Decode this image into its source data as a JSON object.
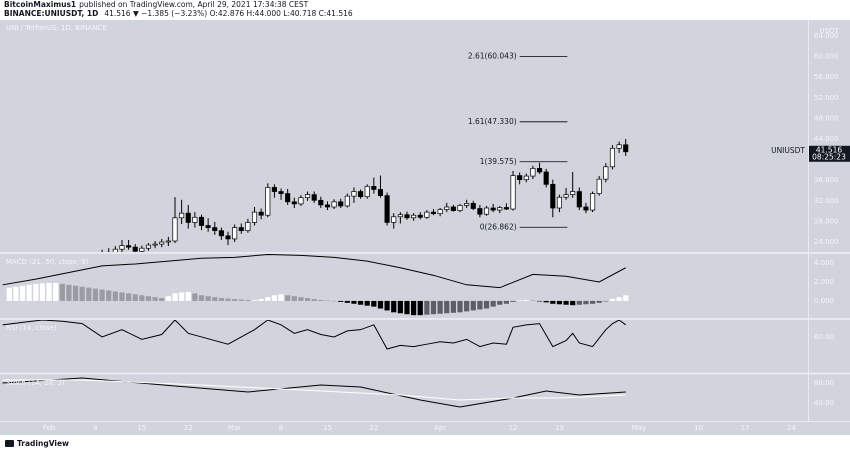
{
  "header": {
    "author": "BitcoinMaximus1",
    "published": "published on TradingView.com, April 29, 2021 17:34:38 CEST",
    "symbol": "BINANCE:UNIUSDT, 1D",
    "quote": "41.516 ▼ −1.385 (−3.23%) O:42.876 H:44.000 L:40.718 C:41.516"
  },
  "footer": {
    "brand": "TradingView"
  },
  "chart_data": [
    {
      "type": "candlestick",
      "legend": "UNI / TetherUS, 1D, BINANCE",
      "currency": "USDT",
      "up_color": "#ffffff",
      "down_color": "#000000",
      "border_color": "#000000",
      "xlim": [
        -7.4,
        114.5
      ],
      "xticks": [
        {
          "value": 0,
          "label": "Feb"
        },
        {
          "value": 7,
          "label": "8"
        },
        {
          "value": 14,
          "label": "15"
        },
        {
          "value": 21,
          "label": "22"
        },
        {
          "value": 28,
          "label": "Mar"
        },
        {
          "value": 35,
          "label": "8"
        },
        {
          "value": 42,
          "label": "15"
        },
        {
          "value": 49,
          "label": "22"
        },
        {
          "value": 59,
          "label": "Apr"
        },
        {
          "value": 70,
          "label": "12"
        },
        {
          "value": 77,
          "label": "19"
        },
        {
          "value": 89,
          "label": "May"
        },
        {
          "value": 98,
          "label": "10"
        },
        {
          "value": 105,
          "label": "17"
        },
        {
          "value": 112,
          "label": "24"
        }
      ],
      "ylim": [
        22.06,
        67.1
      ],
      "yticks": [
        {
          "value": 24,
          "label": "24.000"
        },
        {
          "value": 28,
          "label": "28.000"
        },
        {
          "value": 32,
          "label": "32.000"
        },
        {
          "value": 36,
          "label": "36.000"
        },
        {
          "value": 40,
          "label": "40.000"
        },
        {
          "value": 44,
          "label": "44.000"
        },
        {
          "value": 48,
          "label": "48.000"
        },
        {
          "value": 52,
          "label": "52.000"
        },
        {
          "value": 56,
          "label": "56.000"
        },
        {
          "value": 60,
          "label": "60.000"
        },
        {
          "value": 64,
          "label": "64.000"
        }
      ],
      "x": [
        8,
        9,
        10,
        11,
        12,
        13,
        14,
        15,
        16,
        17,
        18,
        19,
        20,
        21,
        22,
        23,
        24,
        25,
        26,
        27,
        28,
        29,
        30,
        31,
        32,
        33,
        34,
        35,
        36,
        37,
        38,
        39,
        40,
        41,
        42,
        43,
        44,
        45,
        46,
        47,
        48,
        49,
        50,
        51,
        52,
        53,
        54,
        55,
        56,
        57,
        58,
        59,
        60,
        61,
        62,
        63,
        64,
        65,
        66,
        67,
        68,
        69,
        70,
        71,
        72,
        73,
        74,
        75,
        76,
        77,
        78,
        79,
        80,
        81,
        82,
        83,
        84,
        85,
        86,
        87
      ],
      "ohlc": [
        [
          21,
          22.5,
          20,
          21.5
        ],
        [
          21.5,
          22.8,
          21,
          22
        ],
        [
          22,
          23.2,
          21.5,
          22.6
        ],
        [
          22.6,
          24.4,
          22,
          23.3
        ],
        [
          23.3,
          24.4,
          22.5,
          23
        ],
        [
          23,
          23.6,
          21.8,
          22.2
        ],
        [
          22.2,
          23.3,
          21.5,
          22.8
        ],
        [
          22.8,
          23.8,
          22.3,
          23.4
        ],
        [
          23.4,
          24.2,
          22.8,
          23.6
        ],
        [
          23.6,
          24.6,
          23,
          24
        ],
        [
          24,
          25,
          23.2,
          24.2
        ],
        [
          24.2,
          32.7,
          23.8,
          28.7
        ],
        [
          28.7,
          32.2,
          27.5,
          29.6
        ],
        [
          29.6,
          31.2,
          26.6,
          27.8
        ],
        [
          27.8,
          29.8,
          26.8,
          28.8
        ],
        [
          28.8,
          29.3,
          26.3,
          27.2
        ],
        [
          27.2,
          28.6,
          26,
          26.8
        ],
        [
          26.8,
          27.9,
          25.4,
          26.2
        ],
        [
          26.2,
          26.8,
          24.4,
          25.2
        ],
        [
          25.2,
          26,
          23.4,
          24.6
        ],
        [
          24.6,
          27.4,
          24,
          26.8
        ],
        [
          26.8,
          27.6,
          25.6,
          26.2
        ],
        [
          26.2,
          28.5,
          25.8,
          27.8
        ],
        [
          27.8,
          30.8,
          27.2,
          29.8
        ],
        [
          29.8,
          30.5,
          28.4,
          29.2
        ],
        [
          29.2,
          35.4,
          28.8,
          34.6
        ],
        [
          34.6,
          35.2,
          32.6,
          33.8
        ],
        [
          33.8,
          34.4,
          32.2,
          33.4
        ],
        [
          33.4,
          34.3,
          31.2,
          31.8
        ],
        [
          31.8,
          32.6,
          30.6,
          31.4
        ],
        [
          31.4,
          33.1,
          31,
          32.6
        ],
        [
          32.6,
          33.8,
          32,
          33.2
        ],
        [
          33.2,
          33.8,
          31.6,
          32.1
        ],
        [
          32.1,
          32.8,
          30.6,
          31.2
        ],
        [
          31.2,
          31.9,
          30.2,
          30.8
        ],
        [
          30.8,
          32.3,
          30.4,
          31.8
        ],
        [
          31.8,
          32.4,
          30.6,
          31
        ],
        [
          31,
          33.4,
          30.7,
          32.9
        ],
        [
          32.9,
          34.6,
          31.6,
          33.8
        ],
        [
          33.8,
          34.2,
          32.4,
          32.8
        ],
        [
          32.8,
          35.2,
          32.4,
          34.8
        ],
        [
          34.8,
          36.5,
          33.4,
          34.2
        ],
        [
          34.2,
          36.9,
          32.6,
          33
        ],
        [
          33,
          33.6,
          27.2,
          27.8
        ],
        [
          27.8,
          29.6,
          26.6,
          28.9
        ],
        [
          28.9,
          29.8,
          27.6,
          29.3
        ],
        [
          29.3,
          29.9,
          28.3,
          28.7
        ],
        [
          28.7,
          29.6,
          28.1,
          29.2
        ],
        [
          29.2,
          29.8,
          28.4,
          28.8
        ],
        [
          28.8,
          30.2,
          28.5,
          29.8
        ],
        [
          29.8,
          30.4,
          29.2,
          29.5
        ],
        [
          29.5,
          30.6,
          29,
          30.3
        ],
        [
          30.3,
          31.6,
          29.8,
          30.8
        ],
        [
          30.8,
          31.2,
          29.9,
          30.1
        ],
        [
          30.1,
          31.4,
          29.8,
          31.1
        ],
        [
          31.1,
          32.2,
          30.6,
          31.5
        ],
        [
          31.5,
          32,
          30.2,
          30.5
        ],
        [
          30.5,
          31.2,
          28.8,
          29.4
        ],
        [
          29.4,
          31,
          29.1,
          30.6
        ],
        [
          30.6,
          31.4,
          29.8,
          30.2
        ],
        [
          30.2,
          31,
          29.6,
          30.7
        ],
        [
          30.7,
          31.5,
          30.2,
          30.4
        ],
        [
          30.4,
          37.8,
          30.1,
          36.9
        ],
        [
          36.9,
          37.5,
          35.2,
          36.1
        ],
        [
          36.1,
          37.3,
          35.6,
          36.8
        ],
        [
          36.8,
          38.8,
          36.2,
          38.3
        ],
        [
          38.3,
          39.4,
          37.2,
          37.6
        ],
        [
          37.6,
          38.2,
          34.6,
          35.2
        ],
        [
          35.2,
          36.1,
          28.8,
          30.6
        ],
        [
          30.6,
          33.2,
          29.8,
          32.7
        ],
        [
          32.7,
          34.5,
          32.2,
          33.2
        ],
        [
          33.2,
          37.6,
          32.6,
          33.8
        ],
        [
          33.8,
          34.6,
          30.2,
          30.8
        ],
        [
          30.8,
          31.6,
          29.6,
          30.2
        ],
        [
          30.2,
          33.8,
          29.8,
          33.4
        ],
        [
          33.4,
          36.8,
          33,
          36.2
        ],
        [
          36.2,
          39.3,
          35.6,
          38.6
        ],
        [
          38.6,
          42.8,
          38.1,
          42.2
        ],
        [
          42.2,
          43.5,
          41.3,
          42.876
        ],
        [
          42.876,
          44,
          40.718,
          41.516
        ]
      ],
      "fib_levels": [
        {
          "label": "2.61(60.043)",
          "value": 60.043
        },
        {
          "label": "1.61(47.330)",
          "value": 47.33
        },
        {
          "label": "1(39.575)",
          "value": 39.575
        },
        {
          "label": "0(26.862)",
          "value": 26.862
        }
      ],
      "last_price_symbol": "UNIUSDT",
      "last_price": 41.516,
      "countdown": "08:25:23"
    },
    {
      "type": "macd",
      "legend": "MACD (21, 50, close, 9)",
      "ylim": [
        -1.8,
        4.95
      ],
      "yticks": [
        {
          "value": 0,
          "label": "0.000"
        },
        {
          "value": 2,
          "label": "2.000"
        },
        {
          "value": 4,
          "label": "4.000"
        }
      ],
      "line": {
        "color": "#000000",
        "x": [
          -7,
          -2,
          3,
          8,
          13,
          18,
          23,
          28,
          33,
          38,
          43,
          48,
          53,
          58,
          63,
          68,
          73,
          78,
          83,
          87
        ],
        "values": [
          1.7,
          2.3,
          3.0,
          3.7,
          3.9,
          4.2,
          4.5,
          4.6,
          4.9,
          4.8,
          4.6,
          4.2,
          3.5,
          2.7,
          1.7,
          1.4,
          2.8,
          2.6,
          2.0,
          3.5
        ]
      },
      "histogram": {
        "colors": {
          "pos_up": "#ffffff",
          "pos_down": "#9a9ca3",
          "neg_down": "#000000",
          "neg_up": "#5d5f66"
        },
        "x": [
          -6,
          -5,
          -4,
          -3,
          -2,
          -1,
          0,
          1,
          2,
          3,
          4,
          5,
          6,
          7,
          8,
          9,
          10,
          11,
          12,
          13,
          14,
          15,
          16,
          17,
          18,
          19,
          20,
          21,
          22,
          23,
          24,
          25,
          26,
          27,
          28,
          29,
          30,
          31,
          32,
          33,
          34,
          35,
          36,
          37,
          38,
          39,
          40,
          41,
          42,
          43,
          44,
          45,
          46,
          47,
          48,
          49,
          50,
          51,
          52,
          53,
          54,
          55,
          56,
          57,
          58,
          59,
          60,
          61,
          62,
          63,
          64,
          65,
          66,
          67,
          68,
          69,
          70,
          71,
          72,
          73,
          74,
          75,
          76,
          77,
          78,
          79,
          80,
          81,
          82,
          83,
          84,
          85,
          86,
          87
        ],
        "values": [
          1.4,
          1.5,
          1.6,
          1.7,
          1.8,
          1.85,
          1.9,
          1.9,
          1.8,
          1.7,
          1.6,
          1.5,
          1.4,
          1.3,
          1.2,
          1.1,
          1.0,
          0.9,
          0.8,
          0.7,
          0.6,
          0.5,
          0.4,
          0.3,
          0.5,
          0.8,
          0.9,
          0.95,
          0.8,
          0.6,
          0.5,
          0.4,
          0.3,
          0.25,
          0.2,
          0.15,
          0.1,
          0.1,
          0.2,
          0.4,
          0.6,
          0.7,
          0.6,
          0.5,
          0.4,
          0.3,
          0.2,
          0.1,
          0.05,
          0,
          -0.1,
          -0.2,
          -0.3,
          -0.4,
          -0.5,
          -0.6,
          -0.8,
          -1.0,
          -1.2,
          -1.3,
          -1.4,
          -1.5,
          -1.5,
          -1.45,
          -1.4,
          -1.35,
          -1.3,
          -1.25,
          -1.2,
          -1.1,
          -1.0,
          -0.9,
          -0.8,
          -0.6,
          -0.4,
          -0.3,
          -0.1,
          0.05,
          0.1,
          0.05,
          -0.05,
          -0.15,
          -0.3,
          -0.35,
          -0.4,
          -0.45,
          -0.4,
          -0.35,
          -0.3,
          -0.2,
          -0.05,
          0.2,
          0.4,
          0.6
        ]
      }
    },
    {
      "type": "line",
      "legend": "RSI (14, close)",
      "ylim": [
        31,
        74
      ],
      "yticks": [
        {
          "value": 60,
          "label": "60.00"
        }
      ],
      "series": [
        {
          "color": "#000000",
          "x": [
            -7,
            -4,
            -1,
            2,
            5,
            8,
            11,
            14,
            17,
            19,
            21,
            23,
            25,
            27,
            29,
            31,
            33,
            35,
            37,
            39,
            41,
            43,
            45,
            47,
            49,
            51,
            53,
            55,
            57,
            59,
            61,
            63,
            65,
            67,
            69,
            70,
            72,
            74,
            76,
            78,
            79,
            80,
            82,
            84,
            85,
            86,
            87
          ],
          "values": [
            70,
            72,
            74,
            73,
            71,
            60,
            66,
            58,
            62,
            74,
            63,
            60,
            57,
            54,
            60,
            66,
            74,
            70,
            63,
            66,
            62,
            60,
            65,
            66,
            70,
            50,
            53,
            52,
            54,
            56,
            55,
            58,
            52,
            55,
            54,
            68,
            70,
            71,
            52,
            57,
            63,
            55,
            52,
            66,
            71,
            74,
            70
          ]
        }
      ]
    },
    {
      "type": "line",
      "legend": "Stoch (14, 28, 3)",
      "ylim": [
        6,
        96
      ],
      "yticks": [
        {
          "value": 40,
          "label": "40.00"
        },
        {
          "value": 80,
          "label": "80.00"
        }
      ],
      "series": [
        {
          "color": "#000000",
          "x": [
            -7,
            5,
            19,
            30,
            41,
            47,
            56,
            62,
            70,
            75,
            80,
            87
          ],
          "values": [
            80,
            90,
            74,
            62,
            76,
            72,
            46,
            32,
            50,
            64,
            56,
            62
          ]
        },
        {
          "color": "#ffffff",
          "x": [
            -7,
            5,
            23,
            38,
            53,
            62,
            70,
            77,
            87
          ],
          "values": [
            86,
            86,
            76,
            66,
            56,
            46,
            50,
            50,
            56
          ]
        }
      ]
    }
  ]
}
